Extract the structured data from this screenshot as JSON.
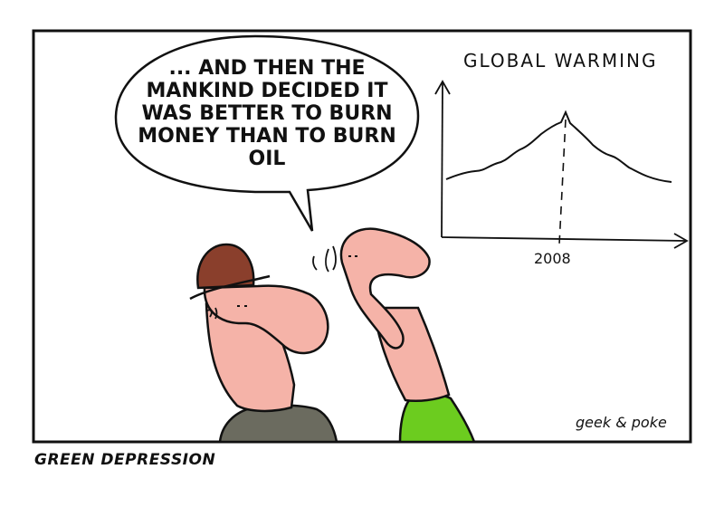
{
  "speech": {
    "lines": [
      "... AND THEN THE",
      "MANKIND DECIDED IT",
      "WAS BETTER TO BURN",
      "MONEY THAN TO BURN",
      "OIL"
    ]
  },
  "graph": {
    "title": "GLOBAL WARMING",
    "year_label": "2008"
  },
  "signature": "geek & poke",
  "caption": "GREEN DEPRESSION",
  "colors": {
    "skin": "#f5b3a8",
    "hat": "#8a3f2c",
    "shirt_left": "#6b6b5f",
    "shirt_right": "#6ccc1f",
    "ink": "#111111"
  }
}
